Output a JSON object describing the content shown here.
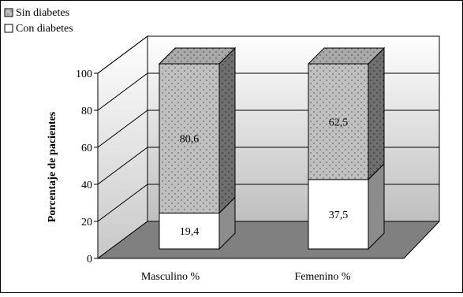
{
  "chart_data": {
    "type": "bar",
    "stacked": true,
    "three_d": true,
    "categories": [
      "Masculino %",
      "Femenino %"
    ],
    "series": [
      {
        "name": "Con diabetes",
        "values": [
          19.4,
          37.5
        ],
        "labels": [
          "19,4",
          "37,5"
        ],
        "color": "#ffffff",
        "pattern": "none"
      },
      {
        "name": "Sin diabetes",
        "values": [
          80.6,
          62.5
        ],
        "labels": [
          "80,6",
          "62,5"
        ],
        "color": "#c0c0c0",
        "pattern": "dots"
      }
    ],
    "ylabel": "Porcentaje de pacientes",
    "ylim": [
      0,
      100
    ],
    "yticks": [
      0,
      20,
      40,
      60,
      80,
      100
    ],
    "ytick_labels": [
      "0",
      "20",
      "40",
      "60",
      "80",
      "100"
    ],
    "grid": true,
    "legend_position": "top-left",
    "floor_color": "#808080",
    "wall_color_top": "#ffffff",
    "wall_color_bottom": "#bfbfbf"
  }
}
